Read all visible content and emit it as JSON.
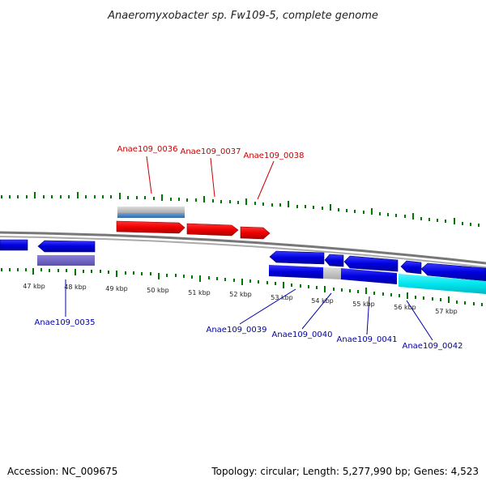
{
  "title": "Anaeromyxobacter sp. Fw109-5, complete genome",
  "footer": {
    "accession": "Accession: NC_009675",
    "summary": "Topology: circular; Length: 5,277,990 bp; Genes: 4,523"
  },
  "colors": {
    "forward_label": "#cc0000",
    "reverse_label": "#0000aa",
    "forward_gene": "#ee0000",
    "reverse_gene": "#0000e0",
    "highlight_gene": "#00e5ee",
    "tick": "#007700",
    "genome_line": "#777777"
  },
  "scale_labels": [
    "47 kbp",
    "48 kbp",
    "49 kbp",
    "50 kbp",
    "51 kbp",
    "52 kbp",
    "53 kbp",
    "54 kbp",
    "55 kbp",
    "56 kbp",
    "57 kbp"
  ],
  "gene_labels": {
    "forward": [
      "Anae109_0036",
      "Anae109_0037",
      "Anae109_0038"
    ],
    "reverse": [
      "Anae109_0035",
      "Anae109_0039",
      "Anae109_0040",
      "Anae109_0041",
      "Anae109_0042"
    ]
  }
}
